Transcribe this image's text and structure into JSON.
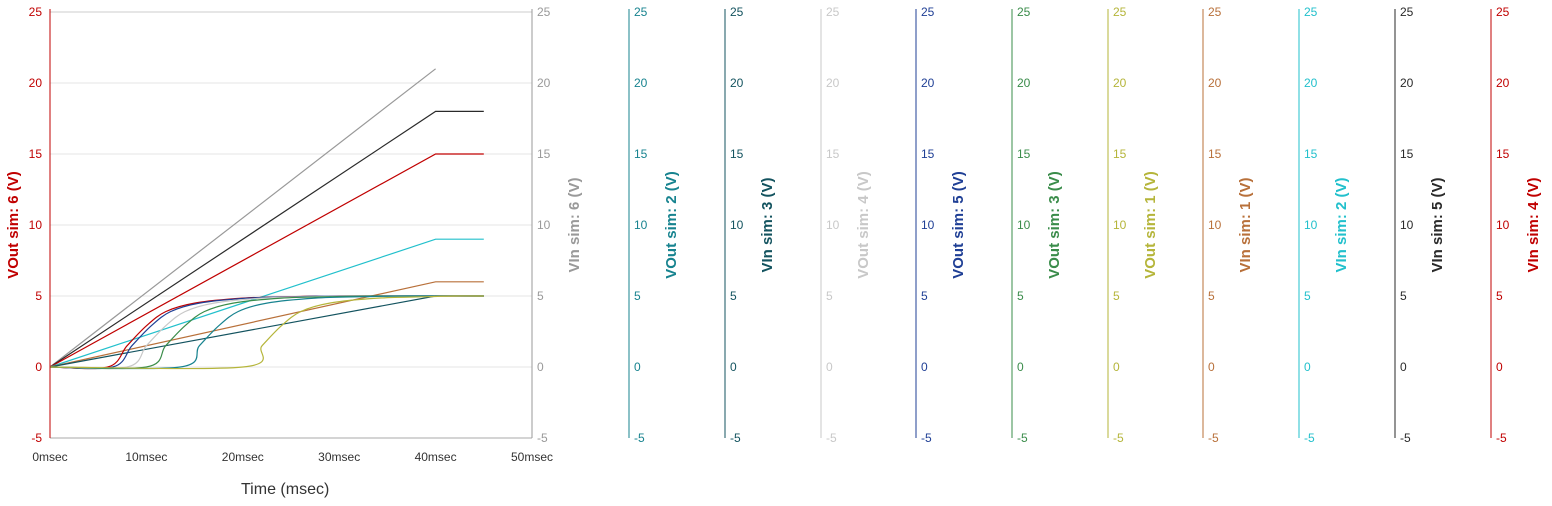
{
  "chart_data": {
    "type": "line",
    "xlabel": "Time (msec)",
    "xlim": [
      0,
      50
    ],
    "x_ticks": [
      0,
      10,
      20,
      30,
      40,
      50
    ],
    "x_tick_labels": [
      "0msec",
      "10msec",
      "20msec",
      "30msec",
      "40msec",
      "50msec"
    ],
    "ylim": [
      -5,
      25
    ],
    "y_ticks": [
      -5,
      0,
      5,
      10,
      15,
      20,
      25
    ],
    "grid": true,
    "axes": [
      {
        "label": "VOut sim: 6 (V)",
        "color": "#c00000"
      },
      {
        "label": "VIn sim: 6 (V)",
        "color": "#999999"
      },
      {
        "label": "VOut sim: 2 (V)",
        "color": "#17838f"
      },
      {
        "label": "VIn sim: 3 (V)",
        "color": "#13535f"
      },
      {
        "label": "VOut sim: 4 (V)",
        "color": "#c8c8c8"
      },
      {
        "label": "VOut sim: 5 (V)",
        "color": "#1f3f95"
      },
      {
        "label": "VOut sim: 3 (V)",
        "color": "#3a8c4a"
      },
      {
        "label": "VOut sim: 1 (V)",
        "color": "#b5b53a"
      },
      {
        "label": "VIn sim: 1 (V)",
        "color": "#b8703a"
      },
      {
        "label": "VIn sim: 2 (V)",
        "color": "#22c0cc"
      },
      {
        "label": "VIn sim: 5 (V)",
        "color": "#2a2a2a"
      },
      {
        "label": "VIn sim: 4 (V)",
        "color": "#c00000"
      }
    ],
    "series": [
      {
        "name": "VIn sim: 6 (V)",
        "color": "#999999",
        "x": [
          0,
          40
        ],
        "y": [
          0,
          21
        ]
      },
      {
        "name": "VIn sim: 5 (V)",
        "color": "#2a2a2a",
        "x": [
          0,
          40,
          45
        ],
        "y": [
          0,
          18,
          18
        ]
      },
      {
        "name": "VIn sim: 4 (V)",
        "color": "#c00000",
        "x": [
          0,
          40,
          45
        ],
        "y": [
          0,
          15,
          15
        ]
      },
      {
        "name": "VIn sim: 2 (V)",
        "color": "#22c0cc",
        "x": [
          0,
          40,
          45
        ],
        "y": [
          0,
          9,
          9
        ]
      },
      {
        "name": "VIn sim: 1 (V)",
        "color": "#b8703a",
        "x": [
          0,
          40,
          45
        ],
        "y": [
          0,
          6,
          6
        ]
      },
      {
        "name": "VIn sim: 3 (V)",
        "color": "#13535f",
        "x": [
          0,
          40,
          45
        ],
        "y": [
          0,
          5,
          5
        ]
      },
      {
        "name": "VOut sim: 6 (V)",
        "color": "#c00000",
        "x": [
          0,
          6,
          8,
          10,
          12,
          15,
          20,
          25,
          30,
          45
        ],
        "y": [
          0,
          0,
          1.5,
          2.9,
          3.9,
          4.5,
          4.85,
          4.95,
          5,
          5
        ]
      },
      {
        "name": "VOut sim: 5 (V)",
        "color": "#1f3f95",
        "x": [
          0,
          6.5,
          8.5,
          10.5,
          12.5,
          15.5,
          20.5,
          25.5,
          30,
          45
        ],
        "y": [
          0,
          0,
          1.5,
          2.9,
          3.9,
          4.5,
          4.85,
          4.95,
          5,
          5
        ]
      },
      {
        "name": "VOut sim: 4 (V)",
        "color": "#c8c8c8",
        "x": [
          0,
          8,
          10,
          12,
          14,
          17,
          22,
          27,
          32,
          45
        ],
        "y": [
          0,
          0,
          1.5,
          2.9,
          3.9,
          4.5,
          4.85,
          4.95,
          5,
          5
        ]
      },
      {
        "name": "VOut sim: 3 (V)",
        "color": "#3a8c4a",
        "x": [
          0,
          10,
          12,
          14,
          16,
          19,
          24,
          29,
          34,
          45
        ],
        "y": [
          0,
          0,
          1.5,
          2.9,
          3.9,
          4.5,
          4.85,
          4.95,
          5,
          5
        ]
      },
      {
        "name": "VOut sim: 2 (V)",
        "color": "#17838f",
        "x": [
          0,
          13.5,
          15.5,
          17.5,
          19.5,
          22.5,
          27.5,
          32.5,
          37,
          45
        ],
        "y": [
          0,
          0,
          1.5,
          2.9,
          3.9,
          4.5,
          4.85,
          4.95,
          5,
          5
        ]
      },
      {
        "name": "VOut sim: 1 (V)",
        "color": "#b5b53a",
        "x": [
          0,
          20,
          22,
          24,
          26,
          29,
          34,
          39,
          42,
          45
        ],
        "y": [
          0,
          0,
          1.5,
          2.9,
          3.9,
          4.5,
          4.85,
          4.95,
          5,
          5
        ]
      }
    ]
  }
}
